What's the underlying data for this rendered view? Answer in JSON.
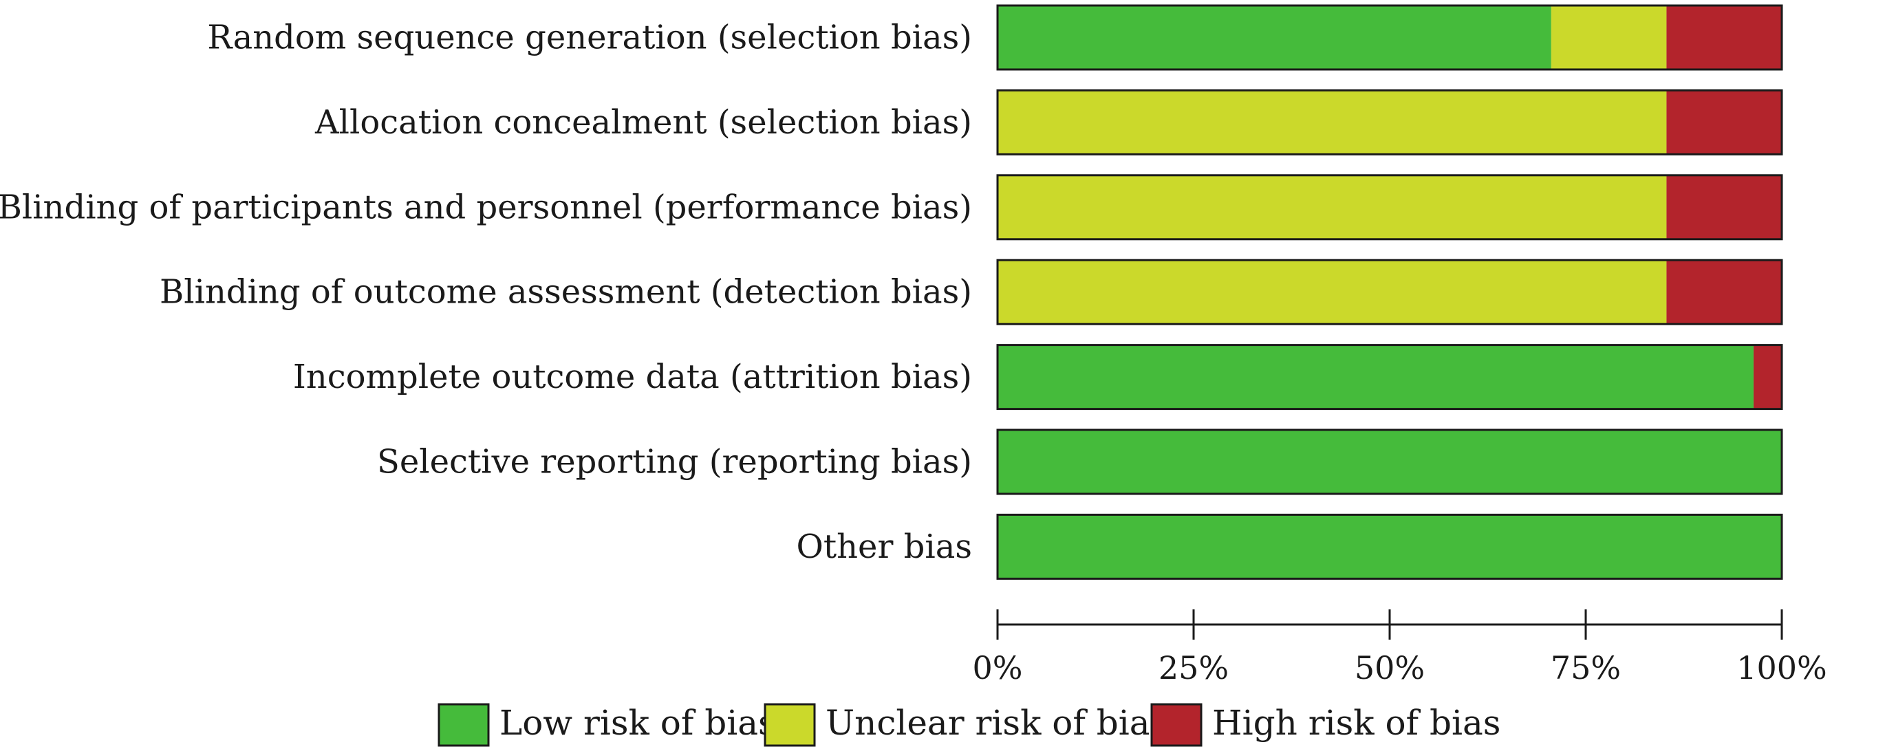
{
  "chart_data": {
    "type": "bar",
    "orientation": "horizontal",
    "stacked": true,
    "categories": [
      "Random sequence generation (selection bias)",
      "Allocation concealment (selection bias)",
      "Blinding of participants and personnel (performance bias)",
      "Blinding of outcome assessment (detection bias)",
      "Incomplete outcome data (attrition bias)",
      "Selective reporting (reporting bias)",
      "Other bias"
    ],
    "series": [
      {
        "name": "Low risk of bias",
        "color": "#45bb3b",
        "values": [
          70.6,
          0,
          0,
          0,
          96.4,
          100,
          100
        ]
      },
      {
        "name": "Unclear risk of bias",
        "color": "#cbd92b",
        "values": [
          14.7,
          85.3,
          85.3,
          85.3,
          0,
          0,
          0
        ]
      },
      {
        "name": "High risk of bias",
        "color": "#b3242c",
        "values": [
          14.7,
          14.7,
          14.7,
          14.7,
          3.6,
          0,
          0
        ]
      }
    ],
    "xlim": [
      0,
      100
    ],
    "x_ticks": [
      "0%",
      "25%",
      "50%",
      "75%",
      "100%"
    ],
    "legend_position": "bottom",
    "grid": false
  }
}
